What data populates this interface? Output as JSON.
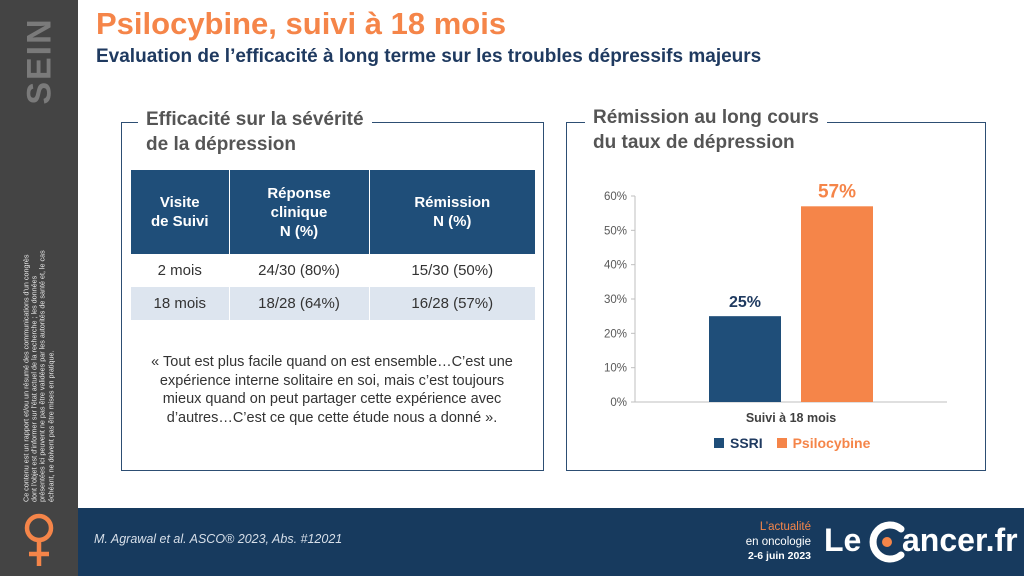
{
  "sidebar": {
    "tag": "SEIN",
    "disclaimer": "Ce contenu est un rapport et/ou un résumé des communications d'un congrès dont l'objet est d'informer sur l'état actuel de la recherche ; les données présentées ici peuvent ne pas être validées par les autorités de santé et, le cas échéant, ne doivent pas être mises en pratique."
  },
  "header": {
    "title": "Psilocybine, suivi à 18 mois",
    "subtitle": "Evaluation de l’efficacité à long terme sur les troubles dépressifs majeurs"
  },
  "left_panel": {
    "title_line1": "Efficacité sur la sévérité",
    "title_line2": "de la dépression",
    "table": {
      "headers": [
        [
          "Visite",
          "de Suivi"
        ],
        [
          "Réponse",
          "clinique",
          "N (%)"
        ],
        [
          "Rémission",
          "N (%)"
        ]
      ],
      "rows": [
        [
          "2 mois",
          "24/30 (80%)",
          "15/30 (50%)"
        ],
        [
          "18 mois",
          "18/28 (64%)",
          "16/28 (57%)"
        ]
      ]
    },
    "quote": "« Tout est plus facile quand on est ensemble…C’est une expérience interne solitaire en soi, mais c’est toujours mieux quand on peut partager cette expérience avec d’autres…C’est ce que cette étude nous a donné »."
  },
  "right_panel": {
    "title_line1": "Rémission au long cours",
    "title_line2": "du taux de dépression"
  },
  "chart_data": {
    "type": "bar",
    "categories": [
      "Suivi à 18 mois"
    ],
    "series": [
      {
        "name": "SSRI",
        "values": [
          25
        ],
        "color": "#1f4e79",
        "label": "25%"
      },
      {
        "name": "Psilocybine",
        "values": [
          57
        ],
        "color": "#f58549",
        "label": "57%"
      }
    ],
    "title": "",
    "xlabel": "",
    "ylabel": "",
    "ylim": [
      0,
      60
    ],
    "yticks": [
      "0%",
      "10%",
      "20%",
      "30%",
      "40%",
      "50%",
      "60%"
    ],
    "grid": false,
    "legend": "bottom"
  },
  "colors": {
    "accent": "#f58549",
    "navy": "#1f4e79",
    "footer": "#173a5e",
    "sidebar": "#444444"
  },
  "footer": {
    "citation": "M. Agrawal et al. ASCO® 2023, Abs. #12021",
    "tag_line1": "L’actualité",
    "tag_line2": "en oncologie",
    "date": "2-6 juin 2023",
    "logo_le": "Le",
    "logo_text": "ancer.fr",
    "icons": [
      "venus-icon",
      "logo-c-icon"
    ]
  }
}
